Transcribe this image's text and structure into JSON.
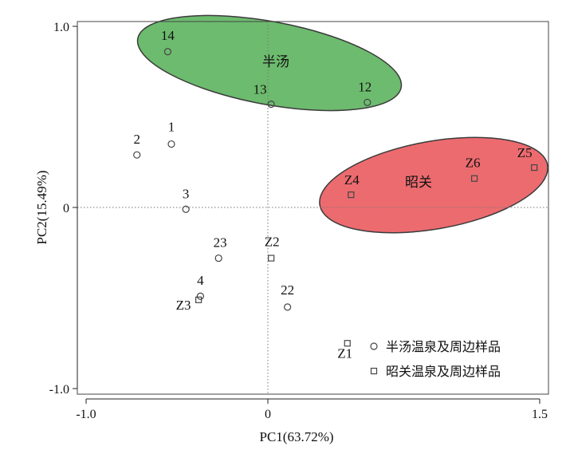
{
  "chart_data": {
    "type": "scatter",
    "xlabel": "PC1(63.72%)",
    "ylabel": "PC2(15.49%)",
    "xlim": [
      -1.0,
      1.5
    ],
    "ylim": [
      -1.0,
      1.0
    ],
    "x_ticks": [
      "-1.0",
      "0",
      "1.5"
    ],
    "y_ticks": [
      "1.0",
      "0",
      "-1.0"
    ],
    "grid": false,
    "reference_lines": {
      "x": 0,
      "y": 0,
      "style": "dotted"
    },
    "legend_position": "bottom-right",
    "series": [
      {
        "name": "半汤温泉及周边样品",
        "marker": "circle",
        "points": [
          {
            "label": "14",
            "x": -0.55,
            "y": 0.86
          },
          {
            "label": "13",
            "x": 0.02,
            "y": 0.57
          },
          {
            "label": "12",
            "x": 0.55,
            "y": 0.58
          },
          {
            "label": "1",
            "x": -0.53,
            "y": 0.35
          },
          {
            "label": "2",
            "x": -0.72,
            "y": 0.29
          },
          {
            "label": "3",
            "x": -0.45,
            "y": -0.01
          },
          {
            "label": "23",
            "x": -0.27,
            "y": -0.28
          },
          {
            "label": "4",
            "x": -0.37,
            "y": -0.49
          },
          {
            "label": "22",
            "x": 0.11,
            "y": -0.55
          }
        ]
      },
      {
        "name": "昭关温泉及周边样品",
        "marker": "square",
        "points": [
          {
            "label": "Z4",
            "x": 0.46,
            "y": 0.07
          },
          {
            "label": "Z6",
            "x": 1.14,
            "y": 0.16
          },
          {
            "label": "Z5",
            "x": 1.47,
            "y": 0.22
          },
          {
            "label": "Z2",
            "x": 0.02,
            "y": -0.28
          },
          {
            "label": "Z3",
            "x": -0.38,
            "y": -0.51
          },
          {
            "label": "Z1",
            "x": 0.44,
            "y": -0.75
          }
        ]
      }
    ],
    "groups": [
      {
        "label": "半汤",
        "color": "#6dbb6e"
      },
      {
        "label": "昭关",
        "color": "#ec6b6f"
      }
    ]
  }
}
